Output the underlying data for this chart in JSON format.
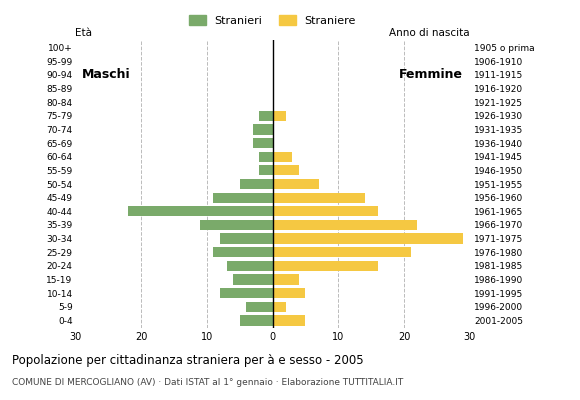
{
  "age_groups": [
    "0-4",
    "5-9",
    "10-14",
    "15-19",
    "20-24",
    "25-29",
    "30-34",
    "35-39",
    "40-44",
    "45-49",
    "50-54",
    "55-59",
    "60-64",
    "65-69",
    "70-74",
    "75-79",
    "80-84",
    "85-89",
    "90-94",
    "95-99",
    "100+"
  ],
  "birth_years": [
    "2001-2005",
    "1996-2000",
    "1991-1995",
    "1986-1990",
    "1981-1985",
    "1976-1980",
    "1971-1975",
    "1966-1970",
    "1961-1965",
    "1956-1960",
    "1951-1955",
    "1946-1950",
    "1941-1945",
    "1936-1940",
    "1931-1935",
    "1926-1930",
    "1921-1925",
    "1916-1920",
    "1911-1915",
    "1906-1910",
    "1905 o prima"
  ],
  "males": [
    5,
    4,
    8,
    6,
    7,
    9,
    8,
    11,
    22,
    9,
    5,
    2,
    2,
    3,
    3,
    2,
    0,
    0,
    0,
    0,
    0
  ],
  "females": [
    5,
    2,
    5,
    4,
    16,
    21,
    29,
    22,
    16,
    14,
    7,
    4,
    3,
    0,
    0,
    2,
    0,
    0,
    0,
    0,
    0
  ],
  "male_color": "#7aaa6a",
  "female_color": "#f5c842",
  "xlim": 30,
  "title": "Popolazione per cittadinanza straniera per à e sesso - 2005",
  "subtitle": "COMUNE DI MERCOGLIANO (AV) · Dati ISTAT al 1° gennaio · Elaborazione TUTTITALIA.IT",
  "legend_male": "Stranieri",
  "legend_female": "Straniere",
  "label_eta": "Età",
  "label_anno": "Anno di nascita",
  "label_maschi": "Maschi",
  "label_femmine": "Femmine",
  "bg_color": "#ffffff",
  "grid_color": "#bbbbbb",
  "bar_height": 0.75
}
